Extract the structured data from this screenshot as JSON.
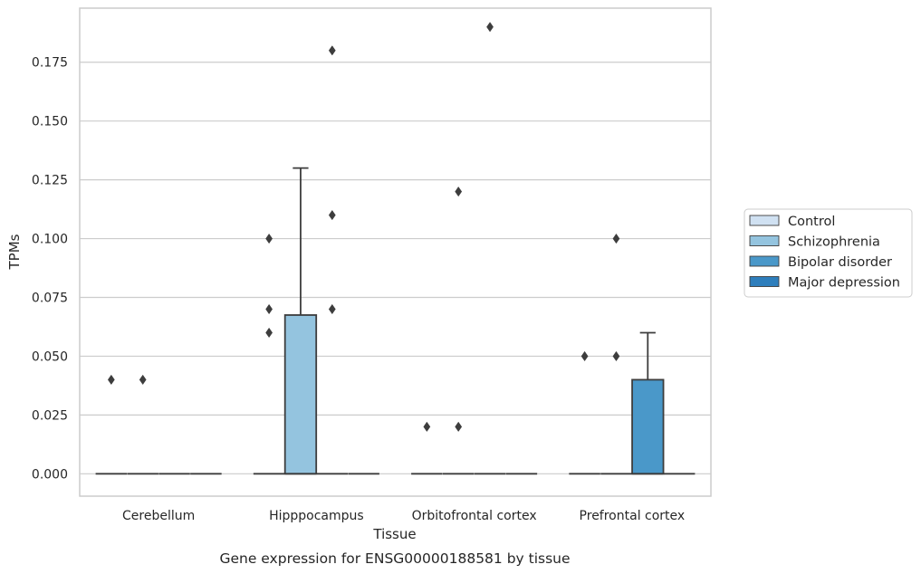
{
  "caption": "Gene expression for ENSG00000188581 by tissue",
  "chart_data": {
    "type": "box",
    "xlabel": "Tissue",
    "ylabel": "TPMs",
    "ylim": [
      -0.0095,
      0.198
    ],
    "yticks": [
      "0.000",
      "0.025",
      "0.050",
      "0.075",
      "0.100",
      "0.125",
      "0.150",
      "0.175"
    ],
    "categories": [
      "Cerebellum",
      "Hipppocampus",
      "Orbitofrontal cortex",
      "Prefrontal cortex"
    ],
    "grid": "horizontal",
    "legend_position": "right",
    "series": [
      {
        "name": "Control",
        "color": "#d0e1f2",
        "boxes": [
          {
            "q1": 0,
            "median": 0,
            "q3": 0,
            "whisker_low": 0,
            "whisker_high": 0,
            "outliers": [
              0.04
            ]
          },
          {
            "q1": 0,
            "median": 0,
            "q3": 0,
            "whisker_low": 0,
            "whisker_high": 0,
            "outliers": [
              0.06,
              0.07,
              0.1
            ]
          },
          {
            "q1": 0,
            "median": 0,
            "q3": 0,
            "whisker_low": 0,
            "whisker_high": 0,
            "outliers": [
              0.02
            ]
          },
          {
            "q1": 0,
            "median": 0,
            "q3": 0,
            "whisker_low": 0,
            "whisker_high": 0,
            "outliers": [
              0.05
            ]
          }
        ]
      },
      {
        "name": "Schizophrenia",
        "color": "#94c4df",
        "boxes": [
          {
            "q1": 0,
            "median": 0,
            "q3": 0,
            "whisker_low": 0,
            "whisker_high": 0,
            "outliers": [
              0.04
            ]
          },
          {
            "q1": 0,
            "median": 0,
            "q3": 0.0675,
            "whisker_low": 0,
            "whisker_high": 0.13,
            "outliers": []
          },
          {
            "q1": 0,
            "median": 0,
            "q3": 0,
            "whisker_low": 0,
            "whisker_high": 0,
            "outliers": [
              0.02,
              0.12
            ]
          },
          {
            "q1": 0,
            "median": 0,
            "q3": 0,
            "whisker_low": 0,
            "whisker_high": 0,
            "outliers": [
              0.05,
              0.1
            ]
          }
        ]
      },
      {
        "name": "Bipolar disorder",
        "color": "#4a98c9",
        "boxes": [
          {
            "q1": 0,
            "median": 0,
            "q3": 0,
            "whisker_low": 0,
            "whisker_high": 0,
            "outliers": []
          },
          {
            "q1": 0,
            "median": 0,
            "q3": 0,
            "whisker_low": 0,
            "whisker_high": 0,
            "outliers": [
              0.07,
              0.11,
              0.18
            ]
          },
          {
            "q1": 0,
            "median": 0,
            "q3": 0,
            "whisker_low": 0,
            "whisker_high": 0,
            "outliers": [
              0.19
            ]
          },
          {
            "q1": 0,
            "median": 0,
            "q3": 0.04,
            "whisker_low": 0,
            "whisker_high": 0.06,
            "outliers": []
          }
        ]
      },
      {
        "name": "Major depression",
        "color": "#2e7ebc",
        "boxes": [
          {
            "q1": 0,
            "median": 0,
            "q3": 0,
            "whisker_low": 0,
            "whisker_high": 0,
            "outliers": []
          },
          {
            "q1": 0,
            "median": 0,
            "q3": 0,
            "whisker_low": 0,
            "whisker_high": 0,
            "outliers": []
          },
          {
            "q1": 0,
            "median": 0,
            "q3": 0,
            "whisker_low": 0,
            "whisker_high": 0,
            "outliers": []
          },
          {
            "q1": 0,
            "median": 0,
            "q3": 0,
            "whisker_low": 0,
            "whisker_high": 0,
            "outliers": []
          }
        ]
      }
    ]
  }
}
